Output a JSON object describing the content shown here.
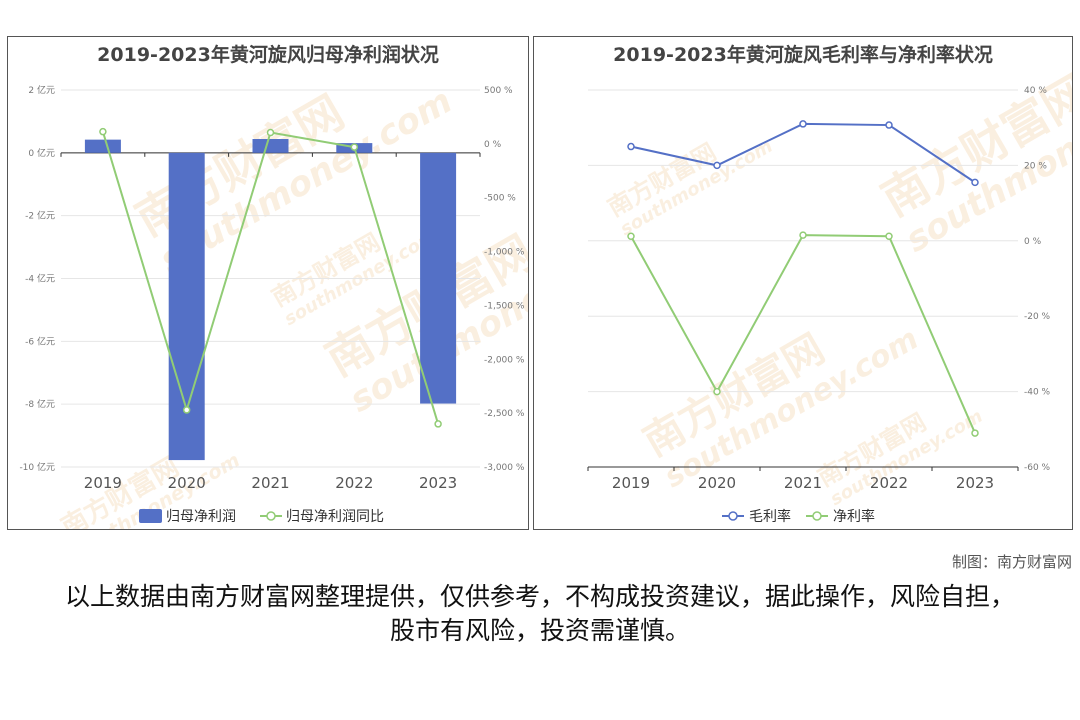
{
  "chart_data": [
    {
      "type": "bar+line",
      "title": "2019-2023年黄河旋风归母净利润状况",
      "categories": [
        "2019",
        "2020",
        "2021",
        "2022",
        "2023"
      ],
      "bar_series": {
        "name": "归母净利润",
        "values": [
          0.42,
          -9.78,
          0.44,
          0.31,
          -7.98
        ],
        "color": "#5470c6"
      },
      "line_series": {
        "name": "归母净利润同比",
        "values": [
          113,
          -2470,
          105,
          -30,
          -2600
        ],
        "color": "#91cc75"
      },
      "left_axis": {
        "ticks": [
          "2 亿元",
          "0 亿元",
          "-2 亿元",
          "-4 亿元",
          "-6 亿元",
          "-8 亿元",
          "-10 亿元"
        ],
        "ylim": [
          -10,
          2
        ]
      },
      "right_axis": {
        "ticks": [
          "500 %",
          "0 %",
          "-500 %",
          "-1,000 %",
          "-1,500 %",
          "-2,000 %",
          "-2,500 %",
          "-3,000 %"
        ],
        "ylim": [
          -3000,
          500
        ]
      },
      "legend_position": "bottom"
    },
    {
      "type": "line",
      "title": "2019-2023年黄河旋风毛利率与净利率状况",
      "categories": [
        "2019",
        "2020",
        "2021",
        "2022",
        "2023"
      ],
      "series": [
        {
          "name": "毛利率",
          "values": [
            25.0,
            20.0,
            31.0,
            30.7,
            15.5
          ],
          "color": "#5470c6"
        },
        {
          "name": "净利率",
          "values": [
            1.2,
            -40.0,
            1.5,
            1.2,
            -51.0
          ],
          "color": "#91cc75"
        }
      ],
      "right_axis": {
        "ticks": [
          "40 %",
          "20 %",
          "0 %",
          "-20 %",
          "-40 %",
          "-60 %"
        ],
        "ylim": [
          -60,
          40
        ]
      },
      "legend_position": "bottom"
    }
  ],
  "watermark": {
    "brand": "南方财富网",
    "site": "southmoney.com",
    "logo_letter": "S"
  },
  "footer": {
    "credit": "制图：南方财富网",
    "disclaimer": "以上数据由南方财富网整理提供，仅供参考，不构成投资建议，据此操作，风险自担，股市有风险，投资需谨慎。"
  }
}
